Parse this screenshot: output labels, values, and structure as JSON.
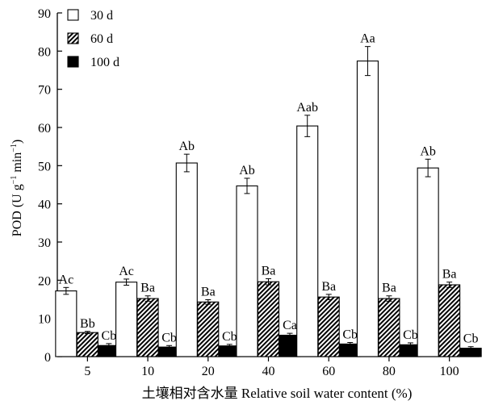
{
  "chart_data": {
    "type": "bar",
    "title": "",
    "xlabel": "土壤相对含水量 Relative soil water content (%)",
    "ylabel_parts": {
      "main": "POD (U g",
      "exp1": "−1",
      "mid": " min",
      "exp2": "−1",
      "end": ")"
    },
    "ylim": [
      0,
      90
    ],
    "yticks": [
      0,
      10,
      20,
      30,
      40,
      50,
      60,
      70,
      80,
      90
    ],
    "categories": [
      "5",
      "10",
      "20",
      "40",
      "60",
      "80",
      "100"
    ],
    "series": [
      {
        "name": "30 d",
        "pattern": "white",
        "values": [
          17.2,
          19.5,
          50.7,
          44.7,
          60.4,
          77.4,
          49.4
        ],
        "errors": [
          0.9,
          0.8,
          2.3,
          2.0,
          2.8,
          3.8,
          2.3
        ],
        "labels": [
          "Ac",
          "Ac",
          "Ab",
          "Ab",
          "Aab",
          "Aa",
          "Ab"
        ]
      },
      {
        "name": "60 d",
        "pattern": "hatch",
        "values": [
          6.3,
          15.2,
          14.3,
          19.6,
          15.6,
          15.2,
          18.8
        ],
        "errors": [
          0.3,
          0.7,
          0.6,
          0.8,
          0.7,
          0.7,
          0.7
        ],
        "labels": [
          "Bb",
          "Ba",
          "Ba",
          "Ba",
          "Ba",
          "Ba",
          "Ba"
        ]
      },
      {
        "name": "100 d",
        "pattern": "black",
        "values": [
          2.9,
          2.5,
          2.8,
          5.6,
          3.3,
          3.1,
          2.2
        ],
        "errors": [
          0.5,
          0.4,
          0.4,
          0.5,
          0.4,
          0.5,
          0.4
        ],
        "labels": [
          "Cb",
          "Cb",
          "Cb",
          "Ca",
          "Cb",
          "Cb",
          "Cb"
        ]
      }
    ],
    "legend_position": "top-left",
    "grid": false
  }
}
